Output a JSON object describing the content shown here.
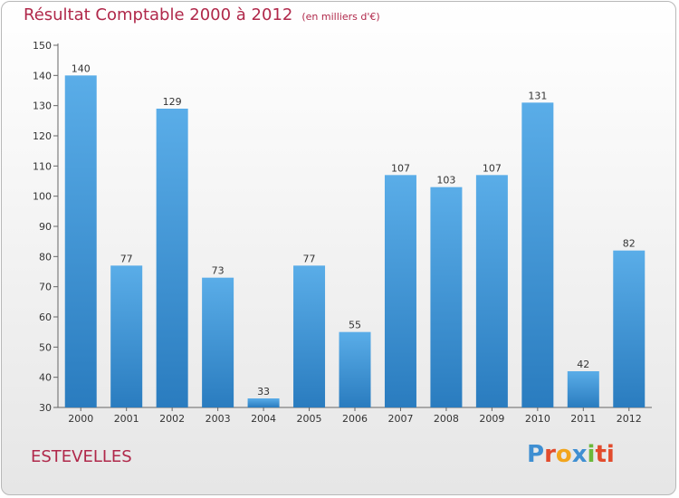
{
  "header": {
    "title": "Résultat Comptable 2000 à 2012",
    "subtitle": "(en milliers d'€)"
  },
  "footer": {
    "commune": "ESTEVELLES",
    "logo": [
      "P",
      "r",
      "o",
      "x",
      "i",
      "ti"
    ]
  },
  "colors": {
    "title": "#b0284a",
    "bar_light": "#5aade8",
    "bar_dark": "#2a7cbf"
  },
  "chart_data": {
    "type": "bar",
    "title": "Résultat Comptable 2000 à 2012",
    "subtitle": "(en milliers d'€)",
    "xlabel": "",
    "ylabel": "",
    "categories": [
      "2000",
      "2001",
      "2002",
      "2003",
      "2004",
      "2005",
      "2006",
      "2007",
      "2008",
      "2009",
      "2010",
      "2011",
      "2012"
    ],
    "values": [
      140,
      77,
      129,
      73,
      33,
      77,
      55,
      107,
      103,
      107,
      131,
      42,
      82
    ],
    "ylim": [
      30,
      150
    ],
    "yticks": [
      30,
      40,
      50,
      60,
      70,
      80,
      90,
      100,
      110,
      120,
      130,
      140,
      150
    ],
    "grid": false,
    "legend": "none"
  }
}
